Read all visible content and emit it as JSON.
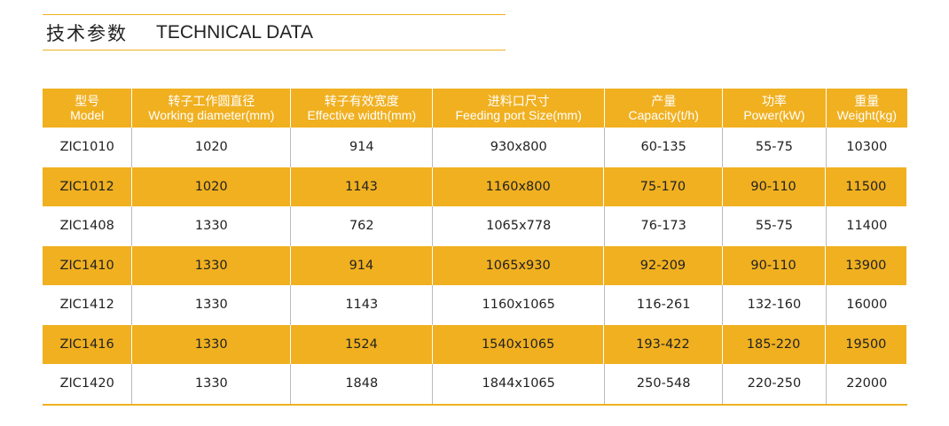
{
  "heading": {
    "cn": "技术参数",
    "en": "TECHNICAL DATA"
  },
  "colors": {
    "accent": "#f0b020",
    "header_text": "#ffffff"
  },
  "table": {
    "headers": [
      {
        "cn": "型号",
        "en": "Model"
      },
      {
        "cn": "转子工作圆直径",
        "en": "Working diameter(mm)"
      },
      {
        "cn": "转子有效宽度",
        "en": "Effective width(mm)"
      },
      {
        "cn": "进料口尺寸",
        "en": "Feeding port Size(mm)"
      },
      {
        "cn": "产量",
        "en": "Capacity(t/h)"
      },
      {
        "cn": "功率",
        "en": "Power(kW)"
      },
      {
        "cn": "重量",
        "en": "Weight(kg)"
      }
    ],
    "rows": [
      [
        "ZIC1010",
        "1020",
        "914",
        "930x800",
        "60-135",
        "55-75",
        "10300"
      ],
      [
        "ZIC1012",
        "1020",
        "1143",
        "1160x800",
        "75-170",
        "90-110",
        "11500"
      ],
      [
        "ZIC1408",
        "1330",
        "762",
        "1065x778",
        "76-173",
        "55-75",
        "11400"
      ],
      [
        "ZIC1410",
        "1330",
        "914",
        "1065x930",
        "92-209",
        "90-110",
        "13900"
      ],
      [
        "ZIC1412",
        "1330",
        "1143",
        "1160x1065",
        "116-261",
        "132-160",
        "16000"
      ],
      [
        "ZIC1416",
        "1330",
        "1524",
        "1540x1065",
        "193-422",
        "185-220",
        "19500"
      ],
      [
        "ZIC1420",
        "1330",
        "1848",
        "1844x1065",
        "250-548",
        "220-250",
        "22000"
      ]
    ]
  }
}
